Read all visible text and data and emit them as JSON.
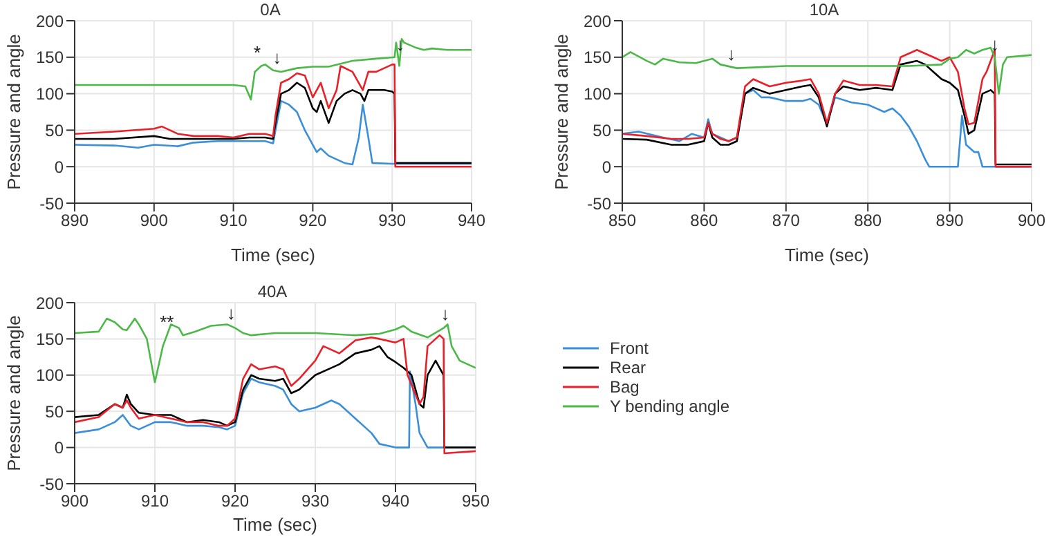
{
  "chart_data": [
    {
      "type": "line",
      "title": "0A",
      "xlabel": "Time (sec)",
      "ylabel": "Pressure and angle",
      "xlim": [
        890,
        940
      ],
      "xticks": [
        890,
        900,
        910,
        920,
        930,
        940
      ],
      "ylim": [
        -50,
        200
      ],
      "yticks": [
        -50,
        0,
        50,
        100,
        150,
        200
      ],
      "grid": true,
      "legend": false,
      "line_style": "solid",
      "marker": "none",
      "annotations": [
        {
          "text": "*",
          "x": 913,
          "y": 138
        },
        {
          "text": "↓",
          "x": 915.5,
          "y": 132
        },
        {
          "text": "↓",
          "x": 931,
          "y": 150
        }
      ],
      "series": [
        {
          "color": "#3a8fd8",
          "x": [
            890,
            895,
            898,
            900,
            903,
            905,
            908,
            910,
            912,
            914,
            915,
            915.3,
            916,
            917,
            918,
            919,
            920,
            920.5,
            921,
            922,
            923,
            924,
            925,
            925.8,
            926.3,
            927,
            927.5,
            930,
            935,
            940
          ],
          "values": [
            30,
            29,
            26,
            30,
            28,
            33,
            35,
            35,
            35,
            35,
            32,
            50,
            90,
            85,
            75,
            50,
            30,
            20,
            25,
            15,
            10,
            5,
            3,
            40,
            85,
            40,
            5,
            4,
            4,
            4
          ]
        },
        {
          "color": "#000000",
          "x": [
            890,
            895,
            900,
            902,
            905,
            910,
            912,
            914,
            915,
            915.3,
            916,
            917,
            918,
            919,
            920,
            920.5,
            921,
            922,
            923,
            924,
            925,
            926,
            926.5,
            927,
            929,
            930,
            930.3,
            930.4,
            935,
            940
          ],
          "values": [
            38,
            38,
            42,
            38,
            38,
            38,
            40,
            40,
            38,
            60,
            100,
            105,
            115,
            108,
            80,
            75,
            90,
            60,
            90,
            100,
            105,
            100,
            90,
            105,
            105,
            103,
            100,
            5,
            5,
            5
          ]
        },
        {
          "color": "#e8202a",
          "x": [
            890,
            895,
            900,
            901,
            903,
            905,
            908,
            910,
            912,
            914,
            915,
            915.3,
            916,
            917,
            918,
            919,
            920,
            921,
            922,
            923,
            923.5,
            925,
            926.3,
            927,
            928,
            929,
            930,
            930.3,
            930.4,
            935,
            940
          ],
          "values": [
            45,
            48,
            52,
            55,
            45,
            42,
            42,
            40,
            45,
            45,
            42,
            70,
            115,
            120,
            128,
            125,
            95,
            115,
            80,
            105,
            138,
            130,
            105,
            130,
            130,
            135,
            140,
            140,
            0,
            0,
            0
          ]
        },
        {
          "color": "#4cb848",
          "x": [
            890,
            900,
            905,
            910,
            911.5,
            912.2,
            912.7,
            913.5,
            914,
            915,
            916,
            918,
            920,
            922,
            925,
            928,
            930.3,
            930.5,
            930.9,
            931.2,
            931.5,
            933,
            934,
            935,
            937,
            940
          ],
          "values": [
            112,
            112,
            112,
            112,
            110,
            92,
            130,
            138,
            140,
            132,
            130,
            135,
            137,
            137,
            145,
            148,
            150,
            170,
            138,
            175,
            170,
            163,
            160,
            162,
            160,
            160
          ]
        }
      ]
    },
    {
      "type": "line",
      "title": "10A",
      "xlabel": "Time (sec)",
      "ylabel": "Pressure and angle",
      "xlim": [
        850,
        900
      ],
      "xticks": [
        850,
        860,
        870,
        880,
        890,
        900
      ],
      "ylim": [
        -50,
        200
      ],
      "yticks": [
        -50,
        0,
        50,
        100,
        150,
        200
      ],
      "grid": true,
      "legend": false,
      "line_style": "solid",
      "marker": "none",
      "annotations": [
        {
          "text": "↓",
          "x": 863.3,
          "y": 137
        },
        {
          "text": "↓",
          "x": 895.5,
          "y": 150
        }
      ],
      "series": [
        {
          "color": "#3a8fd8",
          "x": [
            850,
            852,
            855,
            857,
            858.5,
            860,
            860.5,
            861,
            862,
            863,
            864,
            865,
            866,
            867,
            868,
            870,
            872,
            873,
            874,
            875,
            876,
            878,
            880,
            882,
            883,
            884,
            885,
            886,
            887,
            887.5,
            891,
            891.5,
            892,
            893,
            893.5,
            894,
            900
          ],
          "values": [
            45,
            48,
            40,
            35,
            45,
            40,
            65,
            45,
            40,
            35,
            40,
            100,
            105,
            95,
            95,
            90,
            90,
            93,
            85,
            58,
            95,
            88,
            85,
            75,
            80,
            70,
            55,
            35,
            10,
            0,
            0,
            70,
            30,
            20,
            20,
            0,
            0
          ]
        },
        {
          "color": "#000000",
          "x": [
            850,
            853,
            856,
            858,
            860,
            860.5,
            861,
            862,
            863,
            864,
            865,
            866,
            868,
            870,
            872,
            873,
            874,
            875,
            876,
            877,
            879,
            881,
            883,
            884,
            886,
            887,
            888,
            889,
            890,
            891,
            891.8,
            892.3,
            893,
            894,
            895,
            895.5,
            895.6,
            900
          ],
          "values": [
            38,
            37,
            30,
            30,
            35,
            60,
            40,
            30,
            30,
            35,
            100,
            108,
            100,
            105,
            110,
            112,
            95,
            55,
            100,
            110,
            105,
            108,
            105,
            140,
            145,
            140,
            130,
            120,
            115,
            105,
            70,
            45,
            50,
            100,
            105,
            100,
            3,
            3
          ]
        },
        {
          "color": "#e8202a",
          "x": [
            850,
            853,
            856,
            858,
            860,
            860.5,
            861,
            862,
            863,
            864,
            865,
            866,
            868,
            870,
            872,
            873,
            874,
            875,
            876,
            877,
            879,
            881,
            883,
            884,
            886,
            887,
            888,
            889,
            890,
            891,
            891.8,
            892.3,
            893,
            894,
            894.5,
            895.5,
            895.6,
            900
          ],
          "values": [
            45,
            42,
            38,
            38,
            40,
            60,
            45,
            38,
            35,
            40,
            110,
            120,
            110,
            115,
            118,
            120,
            100,
            60,
            100,
            118,
            112,
            112,
            110,
            150,
            160,
            155,
            150,
            145,
            150,
            130,
            80,
            58,
            60,
            120,
            130,
            160,
            0,
            0
          ]
        },
        {
          "color": "#4cb848",
          "x": [
            850,
            851,
            853,
            854,
            855,
            857,
            859,
            861,
            862,
            864,
            870,
            880,
            885,
            889,
            890,
            891,
            892,
            893,
            894,
            895,
            895.5,
            896,
            896.5,
            897,
            900
          ],
          "values": [
            150,
            157,
            145,
            140,
            148,
            143,
            142,
            148,
            140,
            135,
            138,
            138,
            138,
            140,
            148,
            150,
            160,
            155,
            160,
            163,
            150,
            100,
            140,
            150,
            153
          ]
        }
      ]
    },
    {
      "type": "line",
      "title": "40A",
      "xlabel": "Time (sec)",
      "ylabel": "Pressure and angle",
      "xlim": [
        900,
        950
      ],
      "xticks": [
        900,
        910,
        920,
        930,
        940,
        950
      ],
      "ylim": [
        -50,
        200
      ],
      "yticks": [
        -50,
        0,
        50,
        100,
        150,
        200
      ],
      "grid": true,
      "legend": "right",
      "line_style": "solid",
      "marker": "none",
      "annotations": [
        {
          "text": "**",
          "x": 911.5,
          "y": 155
        },
        {
          "text": "↓",
          "x": 919.5,
          "y": 168
        },
        {
          "text": "↓",
          "x": 946.2,
          "y": 167
        }
      ],
      "series": [
        {
          "name": "Front",
          "color": "#3a8fd8",
          "x": [
            900,
            903,
            905,
            906,
            907,
            908,
            910,
            912,
            914,
            916,
            918,
            919,
            920,
            921,
            922,
            923,
            925,
            926,
            927,
            928,
            930,
            932,
            933,
            935,
            936,
            937,
            938,
            940,
            941.7,
            941.8,
            942.5,
            943,
            944,
            946,
            950
          ],
          "values": [
            20,
            25,
            35,
            45,
            30,
            25,
            35,
            35,
            30,
            30,
            28,
            25,
            30,
            75,
            95,
            90,
            85,
            80,
            60,
            50,
            55,
            65,
            60,
            40,
            30,
            20,
            5,
            0,
            0,
            105,
            60,
            20,
            0,
            0,
            0
          ]
        },
        {
          "name": "Rear",
          "color": "#000000",
          "x": [
            900,
            903,
            905,
            906,
            906.5,
            907,
            908,
            910,
            912,
            914,
            916,
            918,
            919,
            920,
            921,
            922,
            923,
            925,
            926,
            927,
            928,
            930,
            932,
            933,
            935,
            937,
            938,
            939,
            940,
            941,
            942,
            943,
            943.5,
            944,
            945,
            946,
            946.1,
            950
          ],
          "values": [
            42,
            45,
            60,
            55,
            73,
            60,
            48,
            45,
            45,
            35,
            38,
            35,
            30,
            35,
            80,
            100,
            95,
            92,
            95,
            75,
            80,
            100,
            110,
            115,
            130,
            135,
            140,
            125,
            118,
            110,
            100,
            60,
            55,
            100,
            120,
            100,
            0,
            0
          ]
        },
        {
          "name": "Bag",
          "color": "#e8202a",
          "x": [
            900,
            903,
            905,
            906,
            906.5,
            907,
            908,
            910,
            912,
            914,
            916,
            918,
            919,
            920,
            921,
            922,
            923,
            925,
            926,
            927,
            928,
            930,
            931,
            933,
            935,
            937,
            938,
            940,
            941,
            941.5,
            943,
            943.5,
            944,
            945,
            945.5,
            946,
            946.1,
            950
          ],
          "values": [
            35,
            42,
            60,
            55,
            65,
            55,
            40,
            45,
            40,
            35,
            35,
            30,
            30,
            40,
            95,
            115,
            108,
            112,
            108,
            85,
            95,
            120,
            140,
            130,
            148,
            152,
            150,
            145,
            150,
            100,
            60,
            70,
            140,
            150,
            155,
            150,
            -8,
            -5
          ]
        },
        {
          "name": "Y bending angle",
          "color": "#4cb848",
          "x": [
            900,
            903,
            904,
            905,
            906,
            906.5,
            907.5,
            908,
            909,
            910,
            911,
            912,
            913,
            913.5,
            915,
            917,
            919,
            920,
            921,
            922,
            925,
            930,
            935,
            938,
            940,
            941,
            942,
            944,
            946,
            946.5,
            947,
            948,
            950
          ],
          "values": [
            158,
            160,
            178,
            173,
            163,
            162,
            178,
            170,
            150,
            90,
            140,
            170,
            165,
            155,
            160,
            168,
            170,
            165,
            158,
            155,
            158,
            158,
            155,
            157,
            163,
            168,
            160,
            152,
            165,
            170,
            140,
            120,
            110
          ]
        }
      ]
    }
  ]
}
